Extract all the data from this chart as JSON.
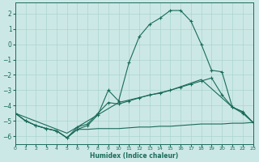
{
  "xlabel": "Humidex (Indice chaleur)",
  "xlim": [
    0,
    23
  ],
  "ylim": [
    -6.5,
    2.7
  ],
  "yticks": [
    2,
    1,
    0,
    -1,
    -2,
    -3,
    -4,
    -5,
    -6
  ],
  "xticks": [
    0,
    1,
    2,
    3,
    4,
    5,
    6,
    7,
    8,
    9,
    10,
    11,
    12,
    13,
    14,
    15,
    16,
    17,
    18,
    19,
    20,
    21,
    22,
    23
  ],
  "bg_color": "#cce8e6",
  "grid_color": "#aad4d0",
  "line_color": "#1a6b5a",
  "line_flat": {
    "x": [
      0,
      1,
      2,
      3,
      4,
      5,
      6,
      7,
      8,
      9,
      10,
      11,
      12,
      13,
      14,
      15,
      16,
      17,
      18,
      19,
      20,
      21,
      22,
      23
    ],
    "y": [
      -4.5,
      -5.0,
      -5.3,
      -5.5,
      -5.65,
      -6.1,
      -5.55,
      -5.55,
      -5.5,
      -5.5,
      -5.5,
      -5.45,
      -5.4,
      -5.4,
      -5.35,
      -5.35,
      -5.3,
      -5.25,
      -5.2,
      -5.2,
      -5.2,
      -5.15,
      -5.15,
      -5.1
    ]
  },
  "line_main": {
    "x": [
      0,
      1,
      2,
      3,
      4,
      5,
      6,
      7,
      8,
      9,
      10,
      11,
      12,
      13,
      14,
      15,
      16,
      17,
      18,
      19,
      20,
      21,
      22,
      23
    ],
    "y": [
      -4.5,
      -5.0,
      -5.3,
      -5.5,
      -5.65,
      -6.1,
      -5.55,
      -5.3,
      -4.6,
      -3.0,
      -3.7,
      -1.2,
      0.5,
      1.3,
      1.7,
      2.2,
      2.2,
      1.5,
      0.0,
      -1.7,
      -1.8,
      -4.1,
      -4.5,
      -5.1
    ]
  },
  "line_diag": {
    "x": [
      0,
      1,
      2,
      3,
      4,
      5,
      6,
      7,
      8,
      9,
      10,
      11,
      12,
      13,
      14,
      15,
      16,
      17,
      18,
      19,
      20,
      21,
      22,
      23
    ],
    "y": [
      -4.5,
      -5.0,
      -5.3,
      -5.5,
      -5.65,
      -6.1,
      -5.4,
      -5.2,
      -4.5,
      -3.8,
      -3.9,
      -3.7,
      -3.5,
      -3.3,
      -3.2,
      -3.0,
      -2.8,
      -2.6,
      -2.4,
      -2.2,
      -3.3,
      -4.1,
      -4.4,
      -5.1
    ]
  },
  "line_slope": {
    "x": [
      0,
      5,
      10,
      15,
      18,
      20,
      21,
      22,
      23
    ],
    "y": [
      -4.5,
      -5.8,
      -3.8,
      -3.0,
      -2.3,
      -3.5,
      -4.1,
      -4.4,
      -5.1
    ]
  }
}
